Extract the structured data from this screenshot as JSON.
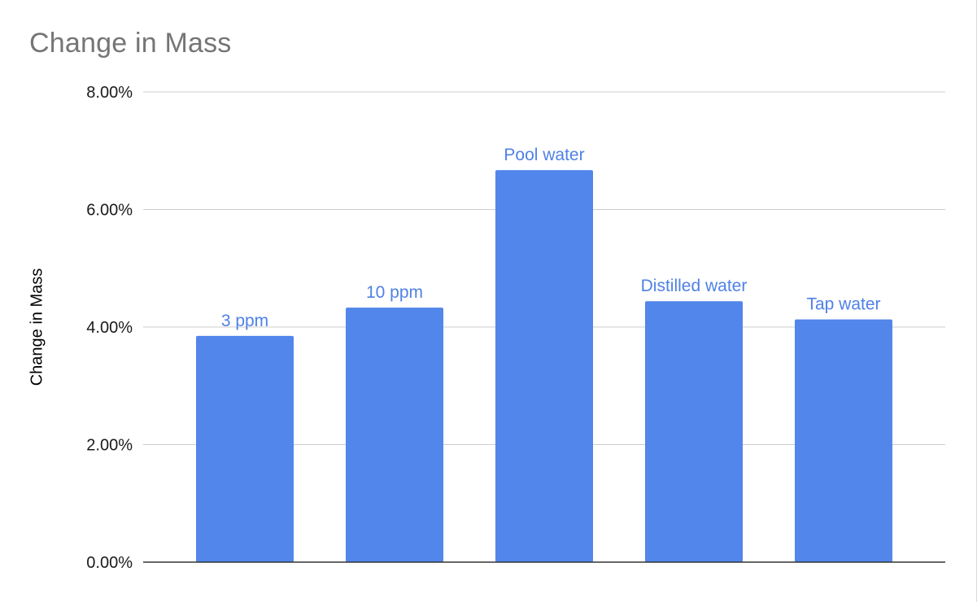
{
  "chart_data": {
    "type": "bar",
    "title": "Change in Mass",
    "ylabel": "Change in Mass",
    "xlabel": "",
    "categories": [
      "3 ppm",
      "10 ppm",
      "Pool water",
      "Distilled water",
      "Tap water"
    ],
    "values": [
      3.85,
      4.33,
      6.67,
      4.44,
      4.13
    ],
    "value_unit": "percent",
    "ylim": [
      0,
      8
    ],
    "yticks": [
      "0.00%",
      "2.00%",
      "4.00%",
      "6.00%",
      "8.00%"
    ],
    "ytick_values": [
      0,
      2,
      4,
      6,
      8
    ],
    "grid": true,
    "legend": "none",
    "bar_color": "#5286EA",
    "label_color": "#4F81E6",
    "gridline_color": "#CCCCCC",
    "axis_color": "#333333",
    "title_color": "#757575"
  }
}
